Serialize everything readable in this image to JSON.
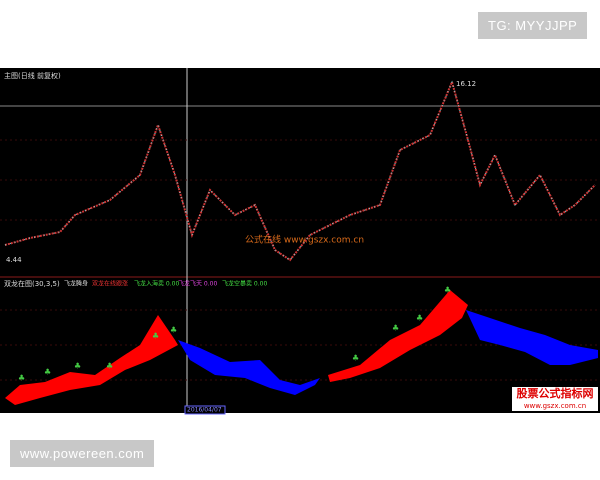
{
  "watermark_top": "TG: MYYJJPP",
  "watermark_bottom": "www.powereen.com",
  "main_panel": {
    "title": "主图(日线 前复权)",
    "high_label": "16.12",
    "low_label": "4.44",
    "overlay": "公式在线 www.gszx.com.cn"
  },
  "indicator_panel": {
    "title": "双龙在图(30,3,5)",
    "legend": [
      "飞龙腾身",
      "双龙在线跟涨",
      "飞龙入海卖 0.00",
      "飞龙飞天 0.00",
      "飞龙空暴卖 0.00"
    ]
  },
  "cursor_date": "2016/04/07",
  "logo": {
    "name": "股票公式指标网",
    "url": "www.gszx.com.cn"
  }
}
